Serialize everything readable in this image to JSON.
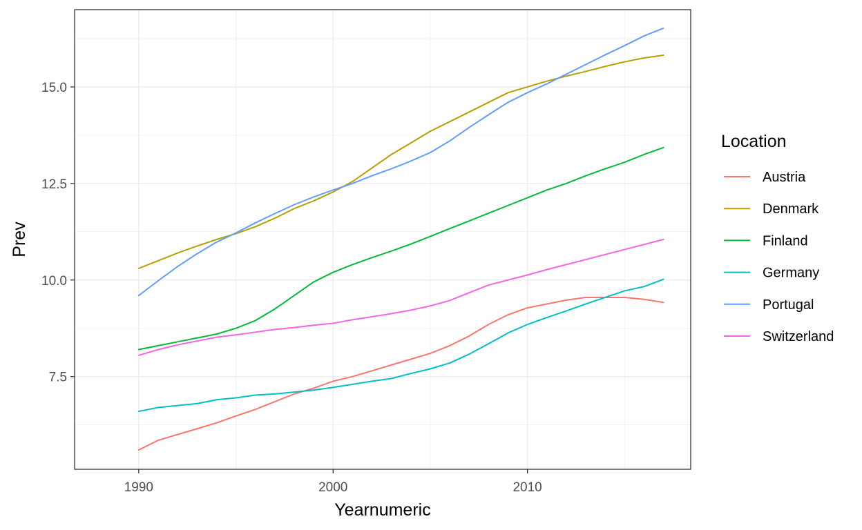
{
  "chart_data": {
    "type": "line",
    "xlabel": "Yearnumeric",
    "ylabel": "Prev",
    "xlim": [
      1986.7,
      2018.4
    ],
    "ylim": [
      5.1,
      17.0
    ],
    "x_ticks": [
      1990,
      2000,
      2010
    ],
    "x_tick_labels": [
      "1990",
      "2000",
      "2010"
    ],
    "y_ticks": [
      7.5,
      10.0,
      12.5,
      15.0
    ],
    "y_tick_labels": [
      "7.5",
      "10.0",
      "12.5",
      "15.0"
    ],
    "grid": true,
    "legend": {
      "title": "Location",
      "position": "right"
    },
    "x": [
      1990,
      1991,
      1992,
      1993,
      1994,
      1995,
      1996,
      1997,
      1998,
      1999,
      2000,
      2001,
      2002,
      2003,
      2004,
      2005,
      2006,
      2007,
      2008,
      2009,
      2010,
      2011,
      2012,
      2013,
      2014,
      2015,
      2016,
      2017
    ],
    "series": [
      {
        "name": "Austria",
        "color": "#F8766D",
        "values": [
          5.6,
          5.85,
          6.0,
          6.15,
          6.3,
          6.48,
          6.65,
          6.85,
          7.05,
          7.2,
          7.38,
          7.5,
          7.65,
          7.8,
          7.95,
          8.1,
          8.3,
          8.55,
          8.85,
          9.1,
          9.28,
          9.38,
          9.48,
          9.55,
          9.55,
          9.55,
          9.5,
          9.42
        ]
      },
      {
        "name": "Denmark",
        "color": "#B79F00",
        "values": [
          10.3,
          10.5,
          10.7,
          10.88,
          11.05,
          11.2,
          11.38,
          11.6,
          11.85,
          12.05,
          12.28,
          12.55,
          12.9,
          13.25,
          13.55,
          13.85,
          14.1,
          14.35,
          14.6,
          14.85,
          15.0,
          15.15,
          15.28,
          15.4,
          15.53,
          15.65,
          15.75,
          15.82
        ]
      },
      {
        "name": "Finland",
        "color": "#00BA38",
        "values": [
          8.2,
          8.3,
          8.4,
          8.5,
          8.6,
          8.75,
          8.95,
          9.25,
          9.6,
          9.95,
          10.2,
          10.4,
          10.58,
          10.75,
          10.93,
          11.13,
          11.33,
          11.53,
          11.73,
          11.93,
          12.13,
          12.33,
          12.5,
          12.7,
          12.88,
          13.05,
          13.25,
          13.43
        ]
      },
      {
        "name": "Germany",
        "color": "#00BFC4",
        "values": [
          6.6,
          6.7,
          6.75,
          6.8,
          6.9,
          6.95,
          7.02,
          7.05,
          7.1,
          7.15,
          7.22,
          7.3,
          7.38,
          7.45,
          7.58,
          7.7,
          7.85,
          8.08,
          8.35,
          8.63,
          8.85,
          9.03,
          9.2,
          9.38,
          9.55,
          9.72,
          9.83,
          10.02
        ]
      },
      {
        "name": "Portugal",
        "color": "#619CFF",
        "values": [
          9.6,
          9.98,
          10.35,
          10.68,
          10.98,
          11.22,
          11.48,
          11.72,
          11.95,
          12.15,
          12.33,
          12.5,
          12.7,
          12.88,
          13.08,
          13.3,
          13.6,
          13.95,
          14.28,
          14.6,
          14.85,
          15.08,
          15.33,
          15.58,
          15.83,
          16.07,
          16.32,
          16.52
        ]
      },
      {
        "name": "Switzerland",
        "color": "#F564E3",
        "values": [
          8.05,
          8.2,
          8.32,
          8.42,
          8.52,
          8.58,
          8.65,
          8.72,
          8.77,
          8.83,
          8.88,
          8.97,
          9.05,
          9.13,
          9.22,
          9.33,
          9.47,
          9.67,
          9.87,
          10.0,
          10.13,
          10.27,
          10.4,
          10.53,
          10.66,
          10.79,
          10.92,
          11.05
        ]
      }
    ]
  }
}
